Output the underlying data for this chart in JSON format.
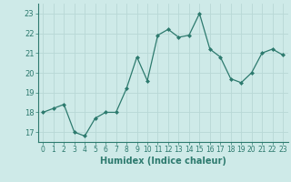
{
  "x": [
    0,
    1,
    2,
    3,
    4,
    5,
    6,
    7,
    8,
    9,
    10,
    11,
    12,
    13,
    14,
    15,
    16,
    17,
    18,
    19,
    20,
    21,
    22,
    23
  ],
  "y": [
    18.0,
    18.2,
    18.4,
    17.0,
    16.8,
    17.7,
    18.0,
    18.0,
    19.2,
    20.8,
    19.6,
    21.9,
    22.2,
    21.8,
    21.9,
    23.0,
    21.2,
    20.8,
    19.7,
    19.5,
    20.0,
    21.0,
    21.2,
    20.9
  ],
  "line_color": "#2d7a6e",
  "marker": "D",
  "marker_size": 2.0,
  "bg_color": "#ceeae8",
  "grid_color": "#b8d8d6",
  "tick_color": "#2d7a6e",
  "xlabel": "Humidex (Indice chaleur)",
  "xlim": [
    -0.5,
    23.5
  ],
  "ylim": [
    16.5,
    23.5
  ],
  "yticks": [
    17,
    18,
    19,
    20,
    21,
    22,
    23
  ],
  "xticks": [
    0,
    1,
    2,
    3,
    4,
    5,
    6,
    7,
    8,
    9,
    10,
    11,
    12,
    13,
    14,
    15,
    16,
    17,
    18,
    19,
    20,
    21,
    22,
    23
  ]
}
